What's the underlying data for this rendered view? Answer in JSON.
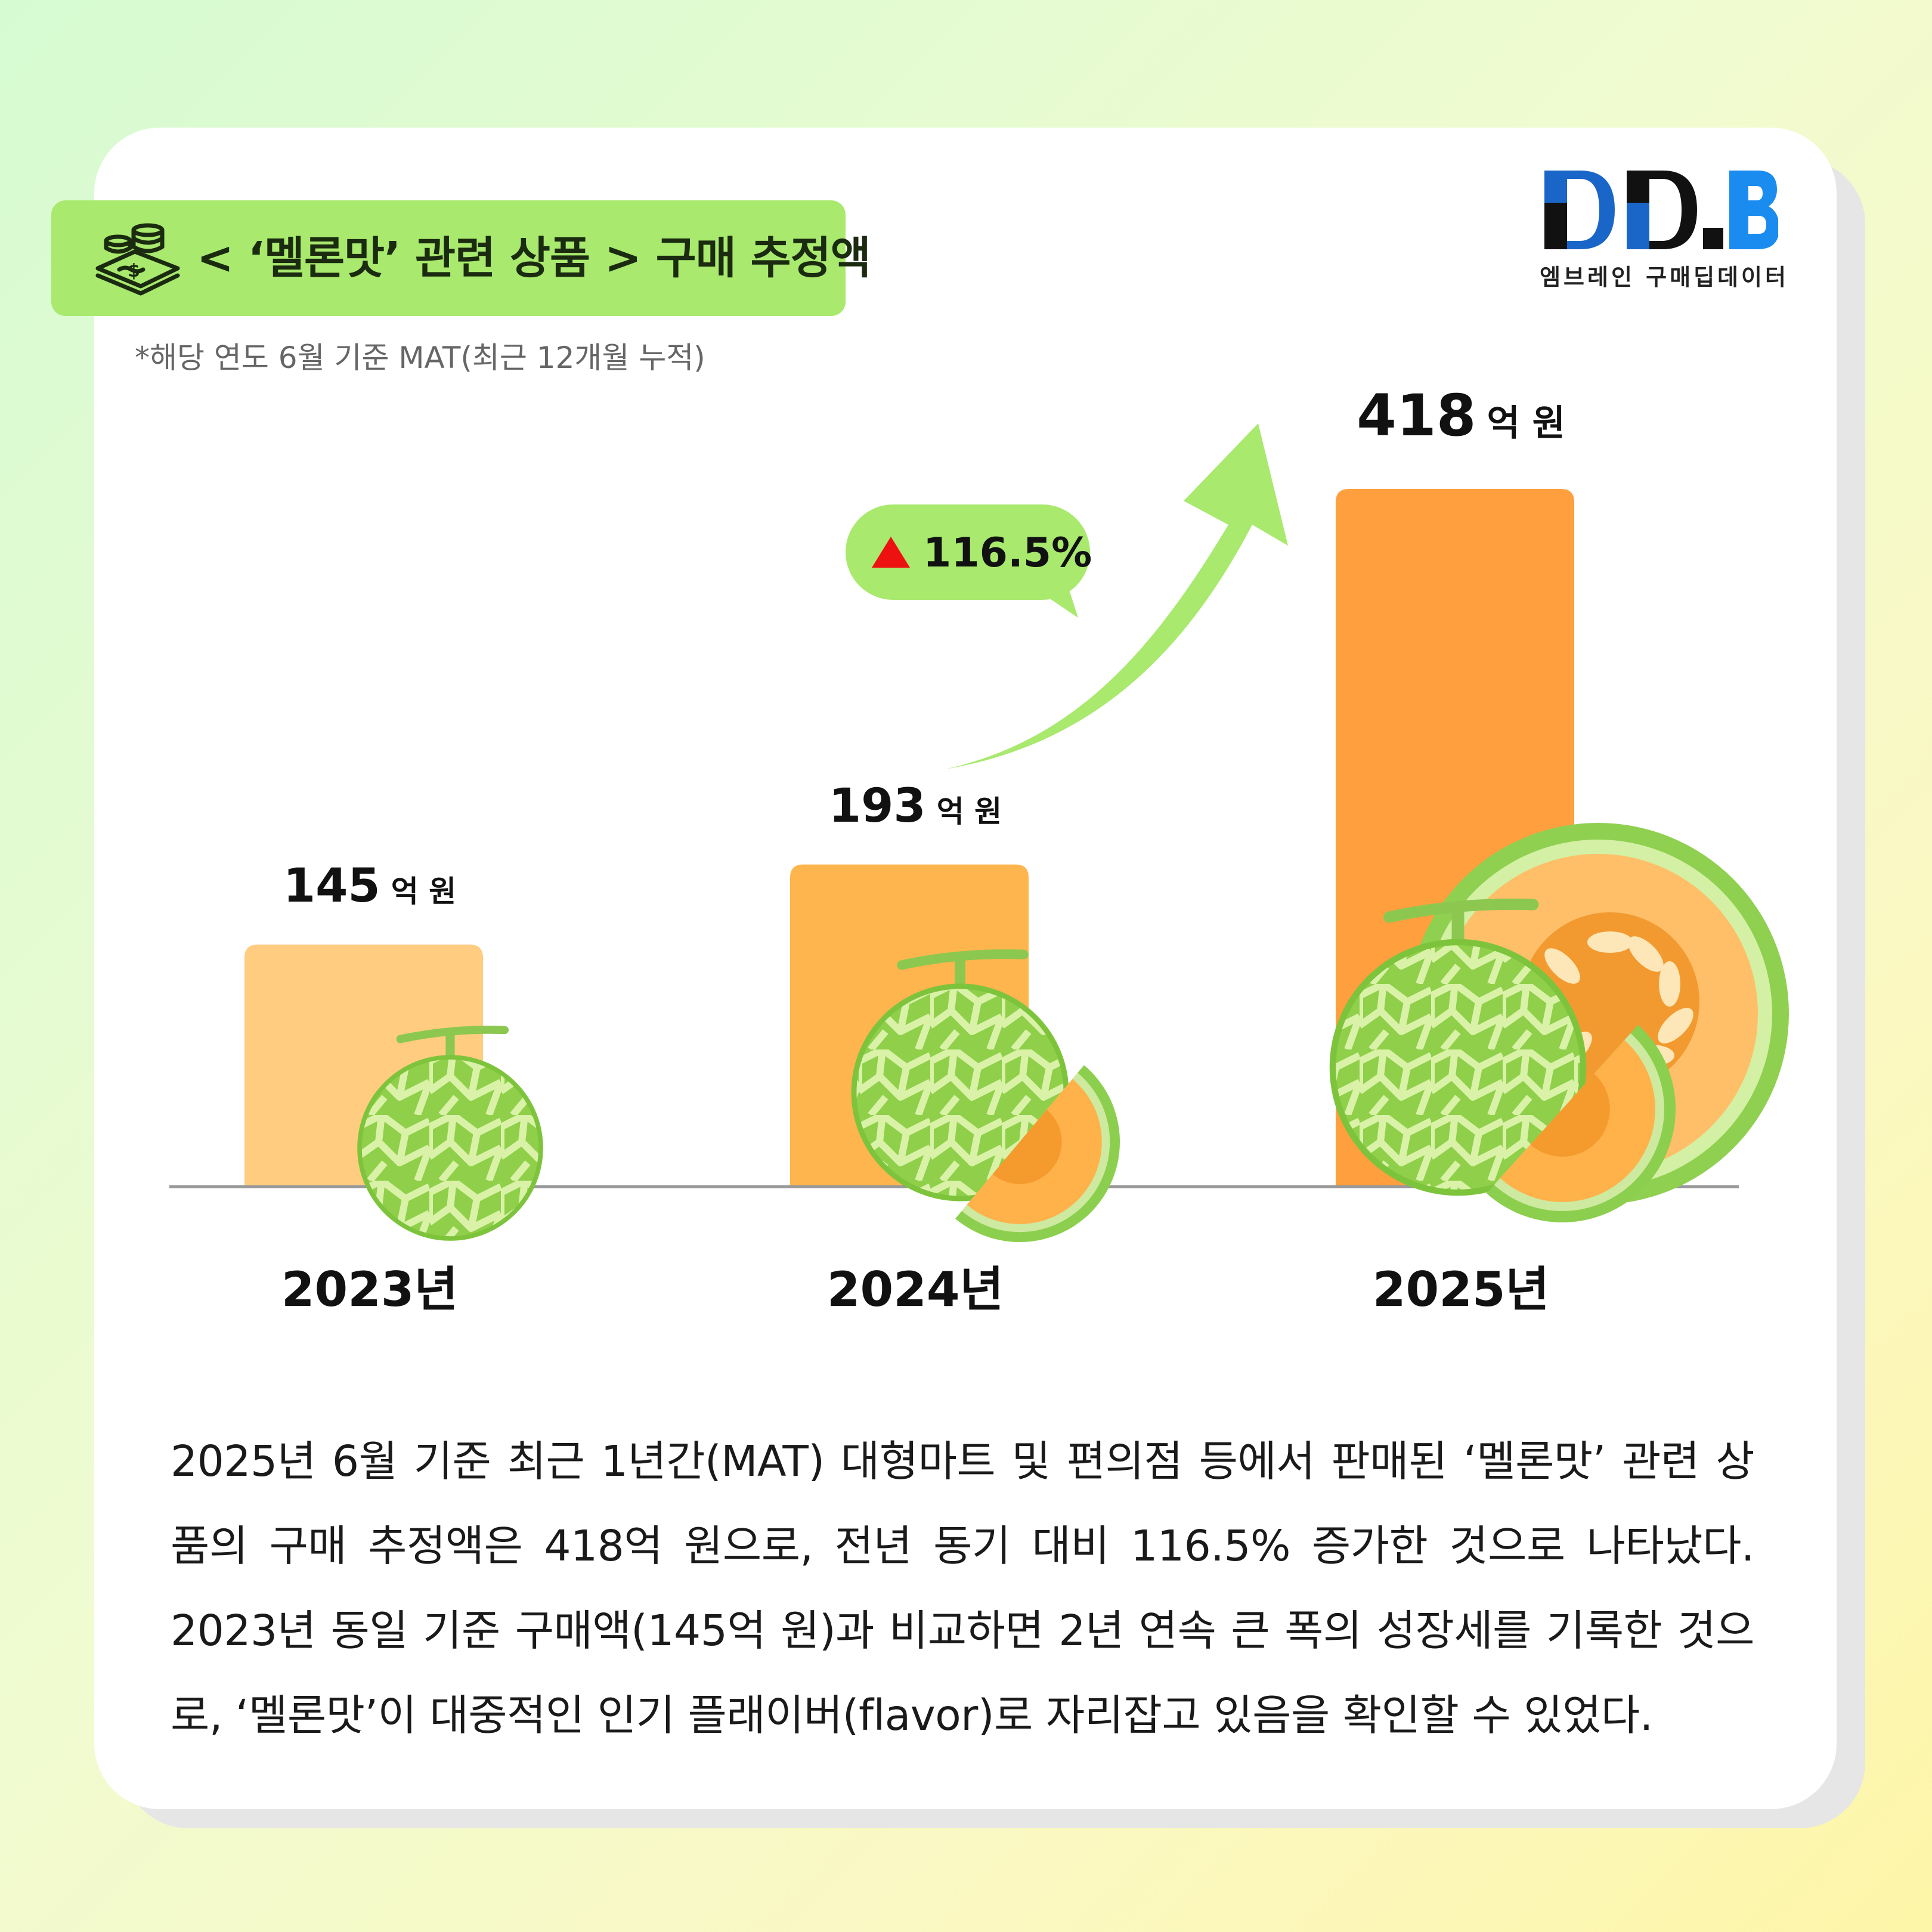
{
  "header": {
    "title": "< ‘멜론맛’ 관련 상품 > 구매 추정액",
    "note": "*해당 연도 6월 기준 MAT(최근 12개월 누적)"
  },
  "logo": {
    "mark": "DD.B",
    "subtitle": "엠브레인 구매딥데이터"
  },
  "chart_data": {
    "type": "bar",
    "title": "< ‘멜론맛’ 관련 상품 > 구매 추정액",
    "categories": [
      "2023년",
      "2024년",
      "2025년"
    ],
    "values": [
      145,
      193,
      418
    ],
    "unit": "억 원",
    "data_labels": [
      "145",
      "193",
      "418"
    ],
    "ylim": [
      0,
      418
    ],
    "bar_colors": [
      "#ffcc80",
      "#ffb54d",
      "#ff9f3d"
    ],
    "growth_label": "116.5%",
    "growth_color": "#ee1111",
    "arrow_color": "#a8e96e",
    "grid": false
  },
  "body": {
    "paragraph": "2025년 6월 기준 최근 1년간(MAT) 대형마트 및 편의점 등에서 판매된 ‘멜론맛’ 관련 상품의 구매 추정액은 418억 원으로, 전년 동기 대비 116.5% 증가한 것으로 나타났다. 2023년 동일 기준 구매액(145억 원)과 비교하면 2년 연속 큰 폭의 성장세를 기록한 것으로, ‘멜론맛’이 대중적인 인기 플래이버(flavor)로 자리잡고 있음을 확인할 수 있었다."
  },
  "icons": [
    "money-coins-icon",
    "melon-icon",
    "growth-arrow-icon",
    "up-triangle-icon"
  ]
}
